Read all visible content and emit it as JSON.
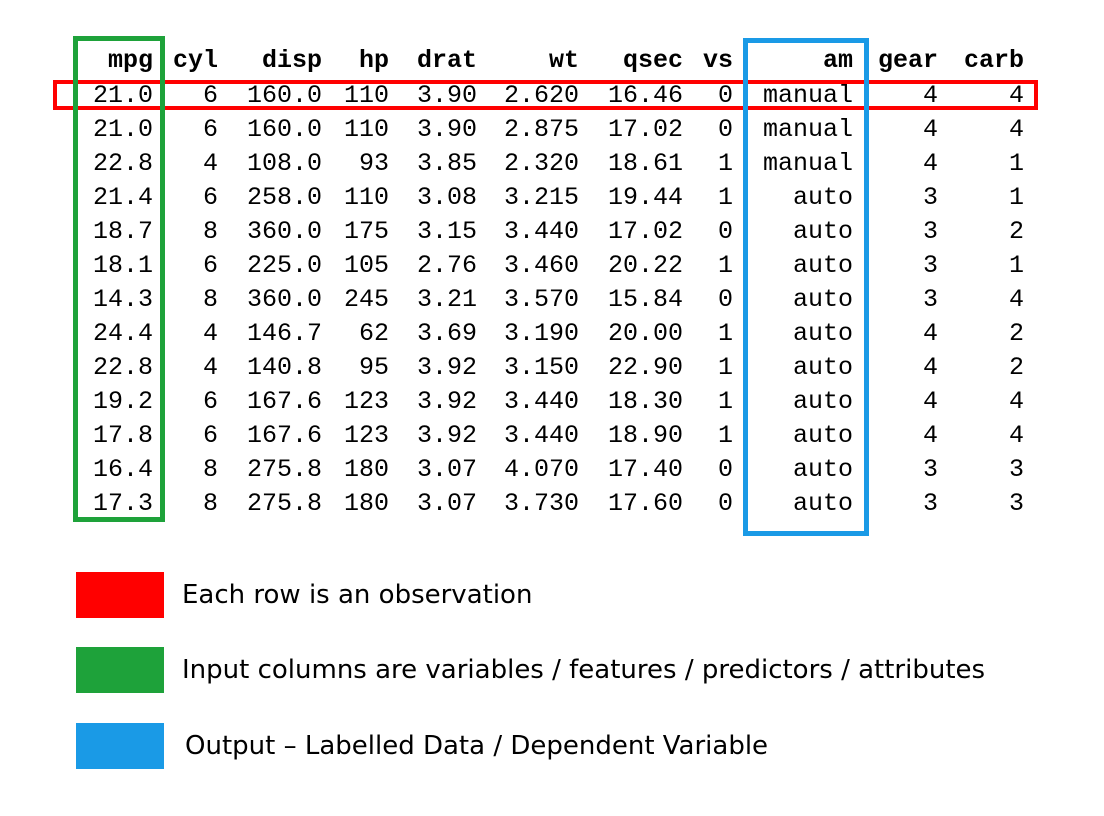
{
  "table": {
    "columns": [
      "mpg",
      "cyl",
      "disp",
      "hp",
      "drat",
      "wt",
      "qsec",
      "vs",
      "am",
      "gear",
      "carb"
    ],
    "rows": [
      [
        "21.0",
        "6",
        "160.0",
        "110",
        "3.90",
        "2.620",
        "16.46",
        "0",
        "manual",
        "4",
        "4"
      ],
      [
        "21.0",
        "6",
        "160.0",
        "110",
        "3.90",
        "2.875",
        "17.02",
        "0",
        "manual",
        "4",
        "4"
      ],
      [
        "22.8",
        "4",
        "108.0",
        "93",
        "3.85",
        "2.320",
        "18.61",
        "1",
        "manual",
        "4",
        "1"
      ],
      [
        "21.4",
        "6",
        "258.0",
        "110",
        "3.08",
        "3.215",
        "19.44",
        "1",
        "auto",
        "3",
        "1"
      ],
      [
        "18.7",
        "8",
        "360.0",
        "175",
        "3.15",
        "3.440",
        "17.02",
        "0",
        "auto",
        "3",
        "2"
      ],
      [
        "18.1",
        "6",
        "225.0",
        "105",
        "2.76",
        "3.460",
        "20.22",
        "1",
        "auto",
        "3",
        "1"
      ],
      [
        "14.3",
        "8",
        "360.0",
        "245",
        "3.21",
        "3.570",
        "15.84",
        "0",
        "auto",
        "3",
        "4"
      ],
      [
        "24.4",
        "4",
        "146.7",
        "62",
        "3.69",
        "3.190",
        "20.00",
        "1",
        "auto",
        "4",
        "2"
      ],
      [
        "22.8",
        "4",
        "140.8",
        "95",
        "3.92",
        "3.150",
        "22.90",
        "1",
        "auto",
        "4",
        "2"
      ],
      [
        "19.2",
        "6",
        "167.6",
        "123",
        "3.92",
        "3.440",
        "18.30",
        "1",
        "auto",
        "4",
        "4"
      ],
      [
        "17.8",
        "6",
        "167.6",
        "123",
        "3.92",
        "3.440",
        "18.90",
        "1",
        "auto",
        "4",
        "4"
      ],
      [
        "16.4",
        "8",
        "275.8",
        "180",
        "3.07",
        "4.070",
        "17.40",
        "0",
        "auto",
        "3",
        "3"
      ],
      [
        "17.3",
        "8",
        "275.8",
        "180",
        "3.07",
        "3.730",
        "17.60",
        "0",
        "auto",
        "3",
        "3"
      ]
    ]
  },
  "highlights": {
    "observation_row": {
      "row_index": 0,
      "color": "#ff0000"
    },
    "input_column": {
      "column": "mpg",
      "color": "#1ea23a"
    },
    "output_column": {
      "column": "am",
      "color": "#1a9ae6"
    }
  },
  "legend": [
    {
      "color": "#ff0000",
      "text": "Each row is an observation"
    },
    {
      "color": "#1ea23a",
      "text": "Input columns are variables / features / predictors / attributes"
    },
    {
      "color": "#1a9ae6",
      "text": "Output – Labelled Data / Dependent Variable"
    }
  ]
}
